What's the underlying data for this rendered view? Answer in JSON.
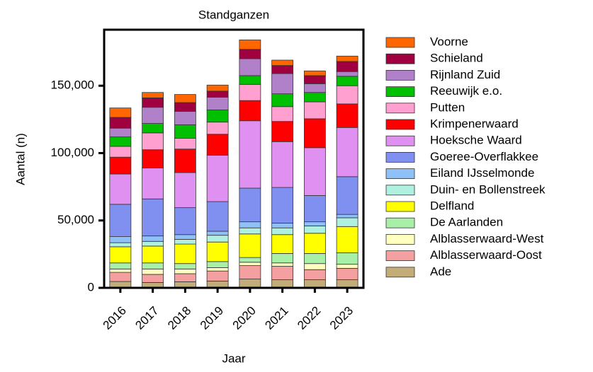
{
  "chart_data": {
    "type": "stacked_bar",
    "title": "Standganzen",
    "x_label": "Jaar",
    "y_label": "Aantal (n)",
    "categories": [
      "2016",
      "2017",
      "2018",
      "2019",
      "2020",
      "2021",
      "2022",
      "2023"
    ],
    "ylim": [
      0,
      190000
    ],
    "yticks": [
      0,
      {
        "value": 50000,
        "label": "50,000"
      },
      {
        "value": 100000,
        "label": "100,000"
      },
      {
        "value": 150000,
        "label": "150,000"
      }
    ],
    "series": [
      {
        "name": "Ade",
        "color": "#c2ad7a",
        "values": [
          4700,
          4000,
          4500,
          5000,
          6500,
          6000,
          6000,
          6000
        ]
      },
      {
        "name": "Alblasserwaard-Oost",
        "color": "#f4a0a0",
        "values": [
          6800,
          6000,
          6000,
          7500,
          10000,
          10000,
          7500,
          8500
        ]
      },
      {
        "name": "Alblasserwaard-West",
        "color": "#ffffc0",
        "values": [
          2500,
          4000,
          3500,
          2500,
          2500,
          2500,
          4500,
          3000
        ]
      },
      {
        "name": "De Aarlanden",
        "color": "#a8f0a8",
        "values": [
          4500,
          4500,
          4000,
          4500,
          3500,
          7000,
          7500,
          8500
        ]
      },
      {
        "name": "Delfland",
        "color": "#ffff00",
        "values": [
          12000,
          12500,
          14500,
          14500,
          17500,
          14000,
          15000,
          19500
        ]
      },
      {
        "name": "Duin- en Bollenstreek",
        "color": "#b0f0e0",
        "values": [
          3000,
          3500,
          3500,
          5000,
          4500,
          5000,
          5500,
          6500
        ]
      },
      {
        "name": "Eiland IJsselmonde",
        "color": "#90c0f8",
        "values": [
          4500,
          4000,
          3500,
          3000,
          4500,
          3500,
          3000,
          2500
        ]
      },
      {
        "name": "Goeree-Overflakkee",
        "color": "#8090f0",
        "values": [
          24000,
          27500,
          20000,
          22000,
          25000,
          26500,
          19500,
          28000
        ]
      },
      {
        "name": "Hoeksche Waard",
        "color": "#e090f0",
        "values": [
          22500,
          23000,
          26000,
          34500,
          50000,
          34000,
          35500,
          36500
        ]
      },
      {
        "name": "Krimpenerwaard",
        "color": "#ff0000",
        "values": [
          12500,
          13500,
          17500,
          15500,
          15000,
          15000,
          21500,
          17500
        ]
      },
      {
        "name": "Putten",
        "color": "#ffa0d0",
        "values": [
          8000,
          12500,
          8000,
          9000,
          12000,
          11000,
          12500,
          13500
        ]
      },
      {
        "name": "Reeuwijk e.o.",
        "color": "#00c000",
        "values": [
          7000,
          7000,
          10000,
          9000,
          6500,
          9500,
          7000,
          7000
        ]
      },
      {
        "name": "Rijnland Zuid",
        "color": "#b080c8",
        "values": [
          6500,
          12000,
          10000,
          9500,
          12500,
          15000,
          6500,
          3500
        ]
      },
      {
        "name": "Schieland",
        "color": "#a00040",
        "values": [
          8000,
          7000,
          6500,
          4500,
          7000,
          6000,
          6000,
          7500
        ]
      },
      {
        "name": "Voorne",
        "color": "#ff6600",
        "values": [
          7000,
          4000,
          6000,
          4500,
          7000,
          4000,
          3500,
          4000
        ]
      }
    ]
  }
}
